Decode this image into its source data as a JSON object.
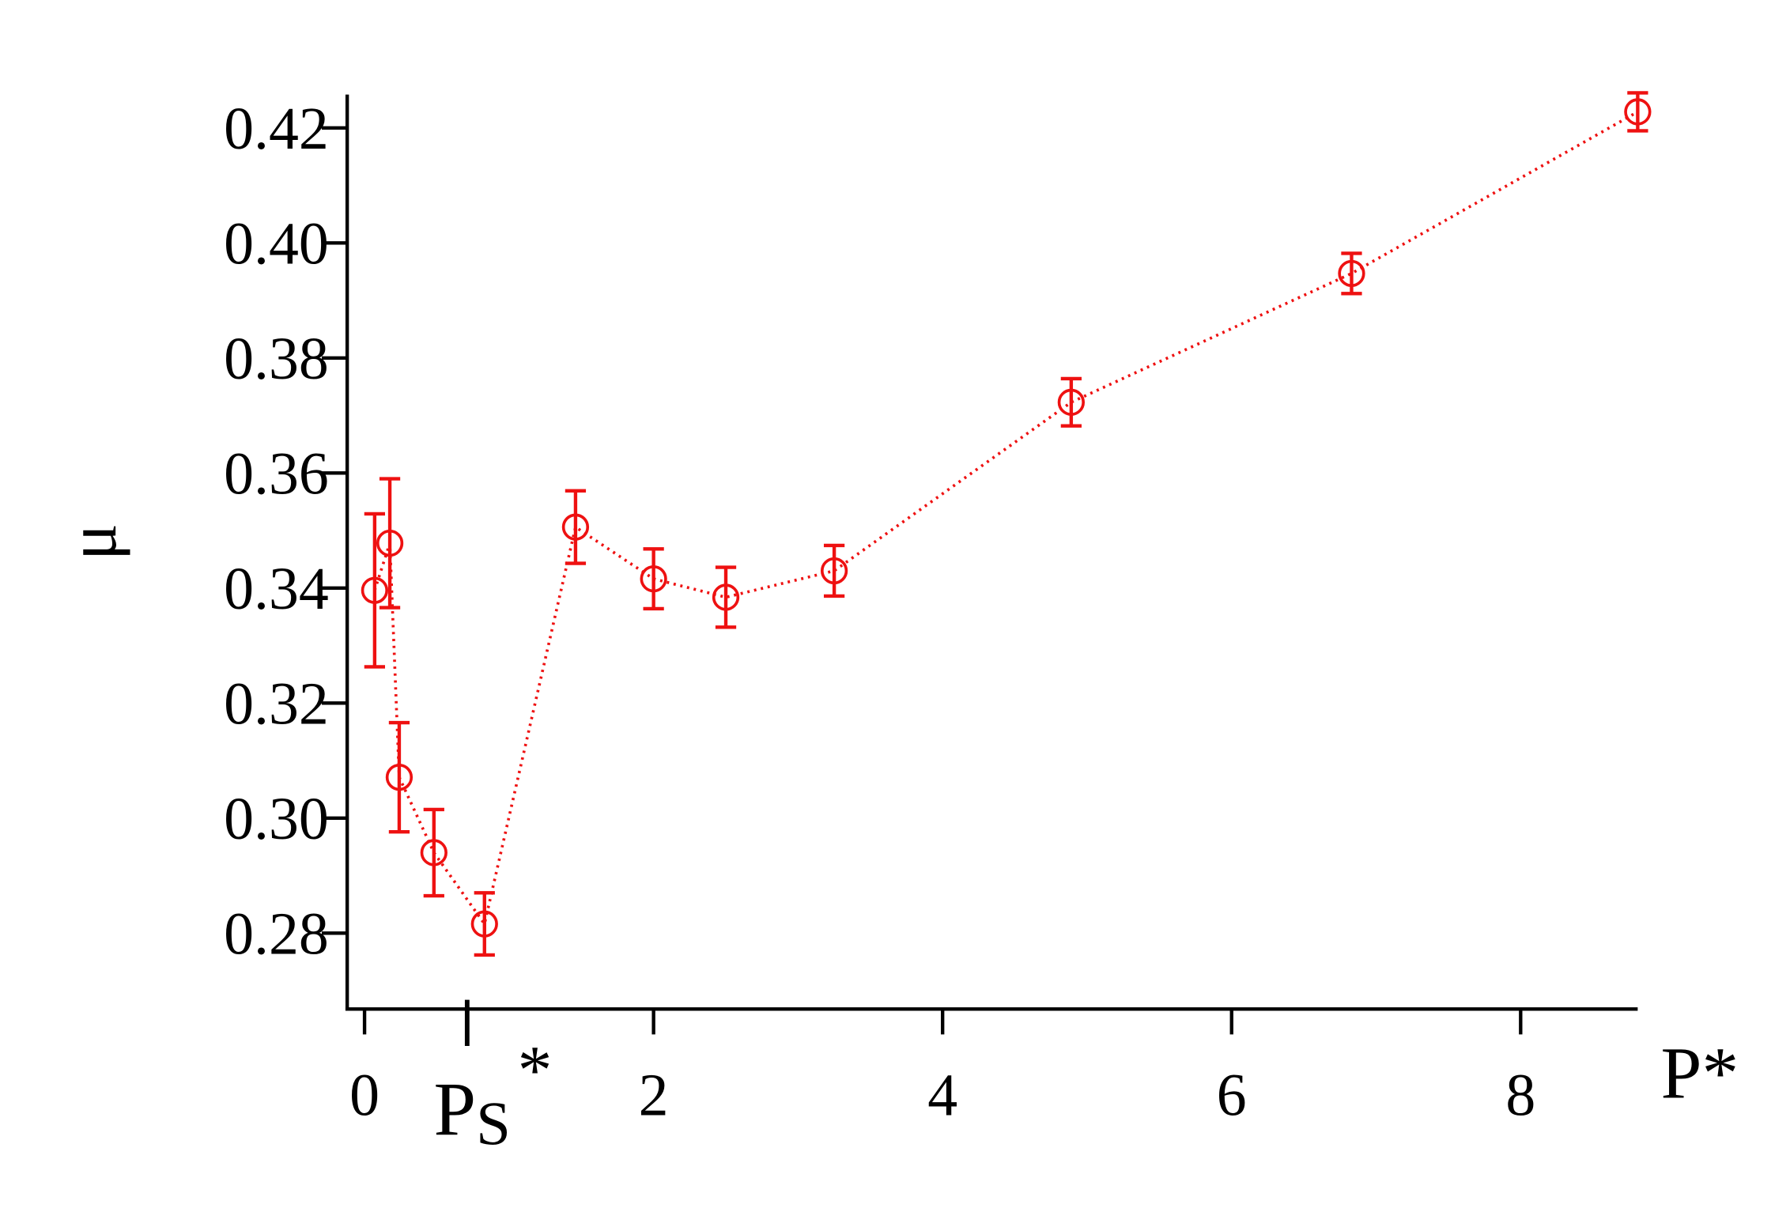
{
  "chart_data": {
    "type": "scatter",
    "x_label": "P*",
    "y_label": "μ",
    "x": [
      0.07,
      0.175,
      0.24,
      0.48,
      0.83,
      1.46,
      2.0,
      2.5,
      3.25,
      4.89,
      6.83,
      8.81
    ],
    "series": [
      {
        "color": "#ee1111",
        "values": [
          0.3396,
          0.3478,
          0.3071,
          0.294,
          0.2816,
          0.3506,
          0.3416,
          0.3384,
          0.343,
          0.3723,
          0.3947,
          0.4228
        ],
        "errors": [
          0.0133,
          0.0112,
          0.0095,
          0.0075,
          0.0054,
          0.0063,
          0.0052,
          0.0052,
          0.0044,
          0.0041,
          0.0035,
          0.0033
        ]
      }
    ],
    "xlim": [
      -0.12,
      8.81
    ],
    "ylim": [
      0.2668,
      0.4258
    ],
    "xticks": [
      0,
      2,
      4,
      6,
      8
    ],
    "yticks": [
      {
        "value": 0.28,
        "label": "0.28"
      },
      {
        "value": 0.3,
        "label": "0.30"
      },
      {
        "value": 0.32,
        "label": "0.32"
      },
      {
        "value": 0.34,
        "label": "0.34"
      },
      {
        "value": 0.36,
        "label": "0.36"
      },
      {
        "value": 0.38,
        "label": "0.38"
      },
      {
        "value": 0.4,
        "label": "0.40"
      },
      {
        "value": 0.42,
        "label": "0.42"
      }
    ],
    "x_marker": {
      "value": 0.71,
      "label": "P",
      "subscript": "S",
      "superscript": "*"
    }
  }
}
